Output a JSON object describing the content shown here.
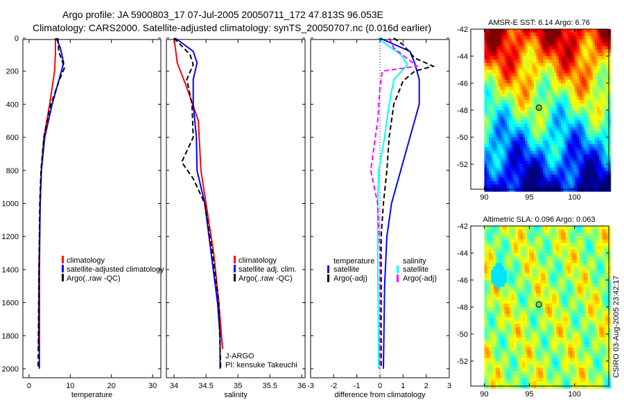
{
  "title": {
    "line1": "Argo profile: JA 5900803_17 07-Jul-2005 20050711_172 47.813S 96.053E",
    "line2": "Climatology: CARS2000. Satellite-adjusted climatology: synTS_20050707.nc (0.016d earlier)"
  },
  "footer_stamp": "CSIRO 03-Aug-2005 23:42:17",
  "colors": {
    "climatology": "#ff0000",
    "satellite": "#0000ff",
    "argo": "#000000",
    "cyan": "#00ffff",
    "magenta": "#ff00ff"
  },
  "chart_data": [
    {
      "type": "line",
      "xlabel": "temperature",
      "ylabel": "",
      "xlim": [
        -1.5,
        32
      ],
      "ylim": [
        2050,
        0
      ],
      "xticks": [
        "0",
        "10",
        "20",
        "30"
      ],
      "xtick_values": [
        0,
        10,
        20,
        30
      ],
      "yticks": [
        "0",
        "200",
        "400",
        "600",
        "800",
        "1000",
        "1200",
        "1400",
        "1600",
        "1800",
        "2000"
      ],
      "ytick_values": [
        0,
        200,
        400,
        600,
        800,
        1000,
        1200,
        1400,
        1600,
        1800,
        2000
      ],
      "legend": [
        "climatology",
        "satellite-adjusted climatology",
        "Argo(..raw -QC)"
      ],
      "series": [
        {
          "name": "climatology",
          "color": "#ff0000",
          "dash": false,
          "depth": [
            0,
            100,
            200,
            400,
            600,
            800,
            1000,
            1400,
            1870
          ],
          "values": [
            6.4,
            6.4,
            6.2,
            5.0,
            3.6,
            3.0,
            2.7,
            2.4,
            2.3
          ]
        },
        {
          "name": "satellite-adjusted climatology",
          "color": "#0000ff",
          "dash": false,
          "depth": [
            0,
            60,
            150,
            250,
            400,
            600,
            800,
            1000,
            1400,
            2000
          ],
          "values": [
            6.6,
            7.6,
            8.4,
            7.3,
            5.6,
            3.8,
            3.0,
            2.7,
            2.5,
            2.5
          ]
        },
        {
          "name": "Argo(..raw -QC)",
          "color": "#000000",
          "dash": true,
          "depth": [
            0,
            80,
            150,
            180,
            250,
            400,
            600,
            800,
            1000,
            1400,
            2000
          ],
          "values": [
            7.0,
            7.2,
            8.2,
            8.6,
            7.4,
            5.3,
            3.6,
            2.9,
            2.6,
            2.4,
            2.2
          ]
        }
      ]
    },
    {
      "type": "line",
      "xlabel": "salinity",
      "xlim": [
        33.88,
        36.05
      ],
      "ylim": [
        2050,
        0
      ],
      "xticks": [
        "34",
        "34.5",
        "35",
        "35.5",
        "36"
      ],
      "xtick_values": [
        34,
        34.5,
        35,
        35.5,
        36
      ],
      "legend": [
        "climatology",
        "satellite adj. clim.",
        "Argo(..raw -QC)"
      ],
      "annotation": [
        "J-ARGO",
        "PI: kensuke Takeuchi"
      ],
      "series": [
        {
          "name": "climatology",
          "color": "#ff0000",
          "dash": false,
          "depth": [
            0,
            150,
            300,
            500,
            800,
            1000,
            1300,
            1600,
            1880
          ],
          "values": [
            34.0,
            34.05,
            34.2,
            34.38,
            34.42,
            34.5,
            34.62,
            34.7,
            34.76
          ]
        },
        {
          "name": "satellite adj. clim.",
          "color": "#0000ff",
          "dash": false,
          "depth": [
            0,
            80,
            150,
            250,
            400,
            600,
            800,
            1000,
            1300,
            1600,
            1800,
            2000
          ],
          "values": [
            34.02,
            34.3,
            34.36,
            34.3,
            34.3,
            34.35,
            34.36,
            34.48,
            34.58,
            34.68,
            34.72,
            34.72
          ]
        },
        {
          "name": "Argo(..raw -QC)",
          "color": "#000000",
          "dash": true,
          "depth": [
            0,
            100,
            160,
            250,
            400,
            600,
            750,
            850,
            1000,
            1300,
            1600,
            2000
          ],
          "values": [
            34.0,
            34.25,
            34.3,
            34.2,
            34.28,
            34.3,
            34.12,
            34.3,
            34.48,
            34.6,
            34.7,
            34.73
          ]
        }
      ]
    },
    {
      "type": "line",
      "xlabel": "difference from climatology",
      "xlim": [
        -3,
        3
      ],
      "ylim": [
        2050,
        0
      ],
      "xticks": [
        "-3",
        "-2",
        "-1",
        "0",
        "1",
        "2",
        "3"
      ],
      "xtick_values": [
        -3,
        -2,
        -1,
        0,
        1,
        2,
        3
      ],
      "legend_headers": [
        "temperature",
        "salinity"
      ],
      "legend": [
        "satellite",
        "Argo(-adj)",
        "satellite",
        "Argo(-adj)"
      ],
      "series": [
        {
          "name": "temperature satellite",
          "color": "#0000ff",
          "dash": false,
          "depth": [
            0,
            80,
            150,
            250,
            400,
            600,
            800,
            1000,
            1200,
            1500,
            2000
          ],
          "values": [
            0.0,
            1.3,
            1.5,
            1.7,
            1.7,
            1.3,
            0.9,
            0.5,
            0.3,
            0.2,
            0.15
          ]
        },
        {
          "name": "temperature Argo(-adj)",
          "color": "#000000",
          "dash": true,
          "depth": [
            0,
            40,
            120,
            170,
            200,
            260,
            400,
            600,
            800,
            1000,
            1200,
            2000
          ],
          "values": [
            0.6,
            1.0,
            1.5,
            2.3,
            1.5,
            1.0,
            0.6,
            0.4,
            0.3,
            0.15,
            0.05,
            0.05
          ]
        },
        {
          "name": "salinity satellite",
          "color": "#00ffff",
          "dash": false,
          "depth": [
            0,
            100,
            160,
            250,
            400,
            600,
            800,
            1000,
            1300,
            2000
          ],
          "values": [
            -0.1,
            0.9,
            1.2,
            0.6,
            0.4,
            0.2,
            -0.05,
            -0.1,
            -0.1,
            -0.05
          ]
        },
        {
          "name": "salinity Argo(-adj)",
          "color": "#ff00ff",
          "dash": true,
          "depth": [
            0,
            60,
            170,
            200,
            300,
            500,
            700,
            800,
            1000,
            1300,
            2000
          ],
          "values": [
            0.4,
            0.6,
            1.6,
            0.1,
            0.0,
            -0.1,
            -0.3,
            -0.4,
            -0.1,
            0.0,
            0.0
          ]
        }
      ]
    },
    {
      "type": "heatmap",
      "title": "AMSR-E SST: 6.14 Argo: 6.76",
      "xticks": [
        "90",
        "95",
        "100"
      ],
      "xtick_values": [
        90,
        95,
        100
      ],
      "yticks": [
        "-42",
        "-44",
        "-46",
        "-48",
        "-50",
        "-52"
      ],
      "ytick_values": [
        -42,
        -44,
        -46,
        -48,
        -50,
        -52
      ],
      "xlim": [
        88.5,
        103.8
      ],
      "ylim": [
        -53.85,
        -42
      ],
      "marker": {
        "lon": 96.053,
        "lat": -47.813
      }
    },
    {
      "type": "heatmap",
      "title": "Altimetric SLA: 0.096 Argo: 0.063",
      "xticks": [
        "90",
        "95",
        "100"
      ],
      "xtick_values": [
        90,
        95,
        100
      ],
      "yticks": [
        "-42",
        "-44",
        "-46",
        "-48",
        "-50",
        "-52"
      ],
      "ytick_values": [
        -42,
        -44,
        -46,
        -48,
        -50,
        -52
      ],
      "xlim": [
        88.5,
        103.8
      ],
      "ylim": [
        -53.85,
        -42
      ],
      "marker": {
        "lon": 96.053,
        "lat": -47.813
      }
    }
  ]
}
